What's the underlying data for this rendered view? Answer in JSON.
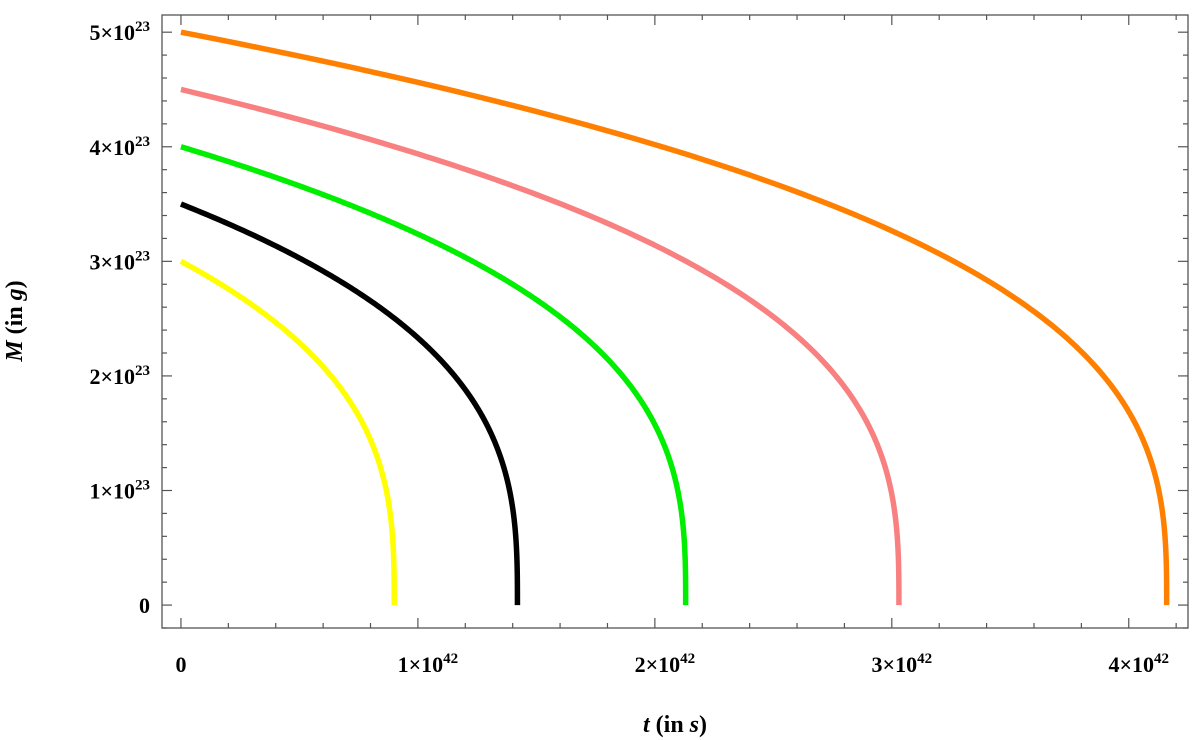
{
  "chart_data": {
    "type": "line",
    "title": "",
    "xlabel": {
      "var": "t",
      "open": " (in ",
      "unit": "s",
      "close": ")"
    },
    "ylabel": {
      "var": "M",
      "open": " (in ",
      "unit": "g",
      "close": ")"
    },
    "xlim": [
      -8e+40,
      4.25e+42
    ],
    "ylim": [
      -2e+22,
      5.15e+23
    ],
    "grid": false,
    "legend": "none",
    "x_ticks": [
      {
        "value": 0,
        "mantissa": "0",
        "exp": ""
      },
      {
        "value": 1e+42,
        "mantissa": "1×10",
        "exp": "42"
      },
      {
        "value": 2e+42,
        "mantissa": "2×10",
        "exp": "42"
      },
      {
        "value": 3e+42,
        "mantissa": "3×10",
        "exp": "42"
      },
      {
        "value": 4e+42,
        "mantissa": "4×10",
        "exp": "42"
      }
    ],
    "y_ticks": [
      {
        "value": 0,
        "mantissa": "0",
        "exp": ""
      },
      {
        "value": 1e+23,
        "mantissa": "1×10",
        "exp": "23"
      },
      {
        "value": 2e+23,
        "mantissa": "2×10",
        "exp": "23"
      },
      {
        "value": 3e+23,
        "mantissa": "3×10",
        "exp": "23"
      },
      {
        "value": 4e+23,
        "mantissa": "4×10",
        "exp": "23"
      },
      {
        "value": 5e+23,
        "mantissa": "5×10",
        "exp": "23"
      }
    ],
    "x_minor_step": 2e+41,
    "y_minor_step": 2e+22,
    "series": [
      {
        "color": "#ffff00",
        "M0": 3e+23,
        "t_end": 9e+41
      },
      {
        "color": "#000000",
        "M0": 3.5e+23,
        "t_end": 1.42e+42
      },
      {
        "color": "#00ee00",
        "M0": 4e+23,
        "t_end": 2.13e+42
      },
      {
        "color": "#f88080",
        "M0": 4.5e+23,
        "t_end": 3.03e+42
      },
      {
        "color": "#ff8000",
        "M0": 5e+23,
        "t_end": 4.16e+42
      }
    ]
  }
}
